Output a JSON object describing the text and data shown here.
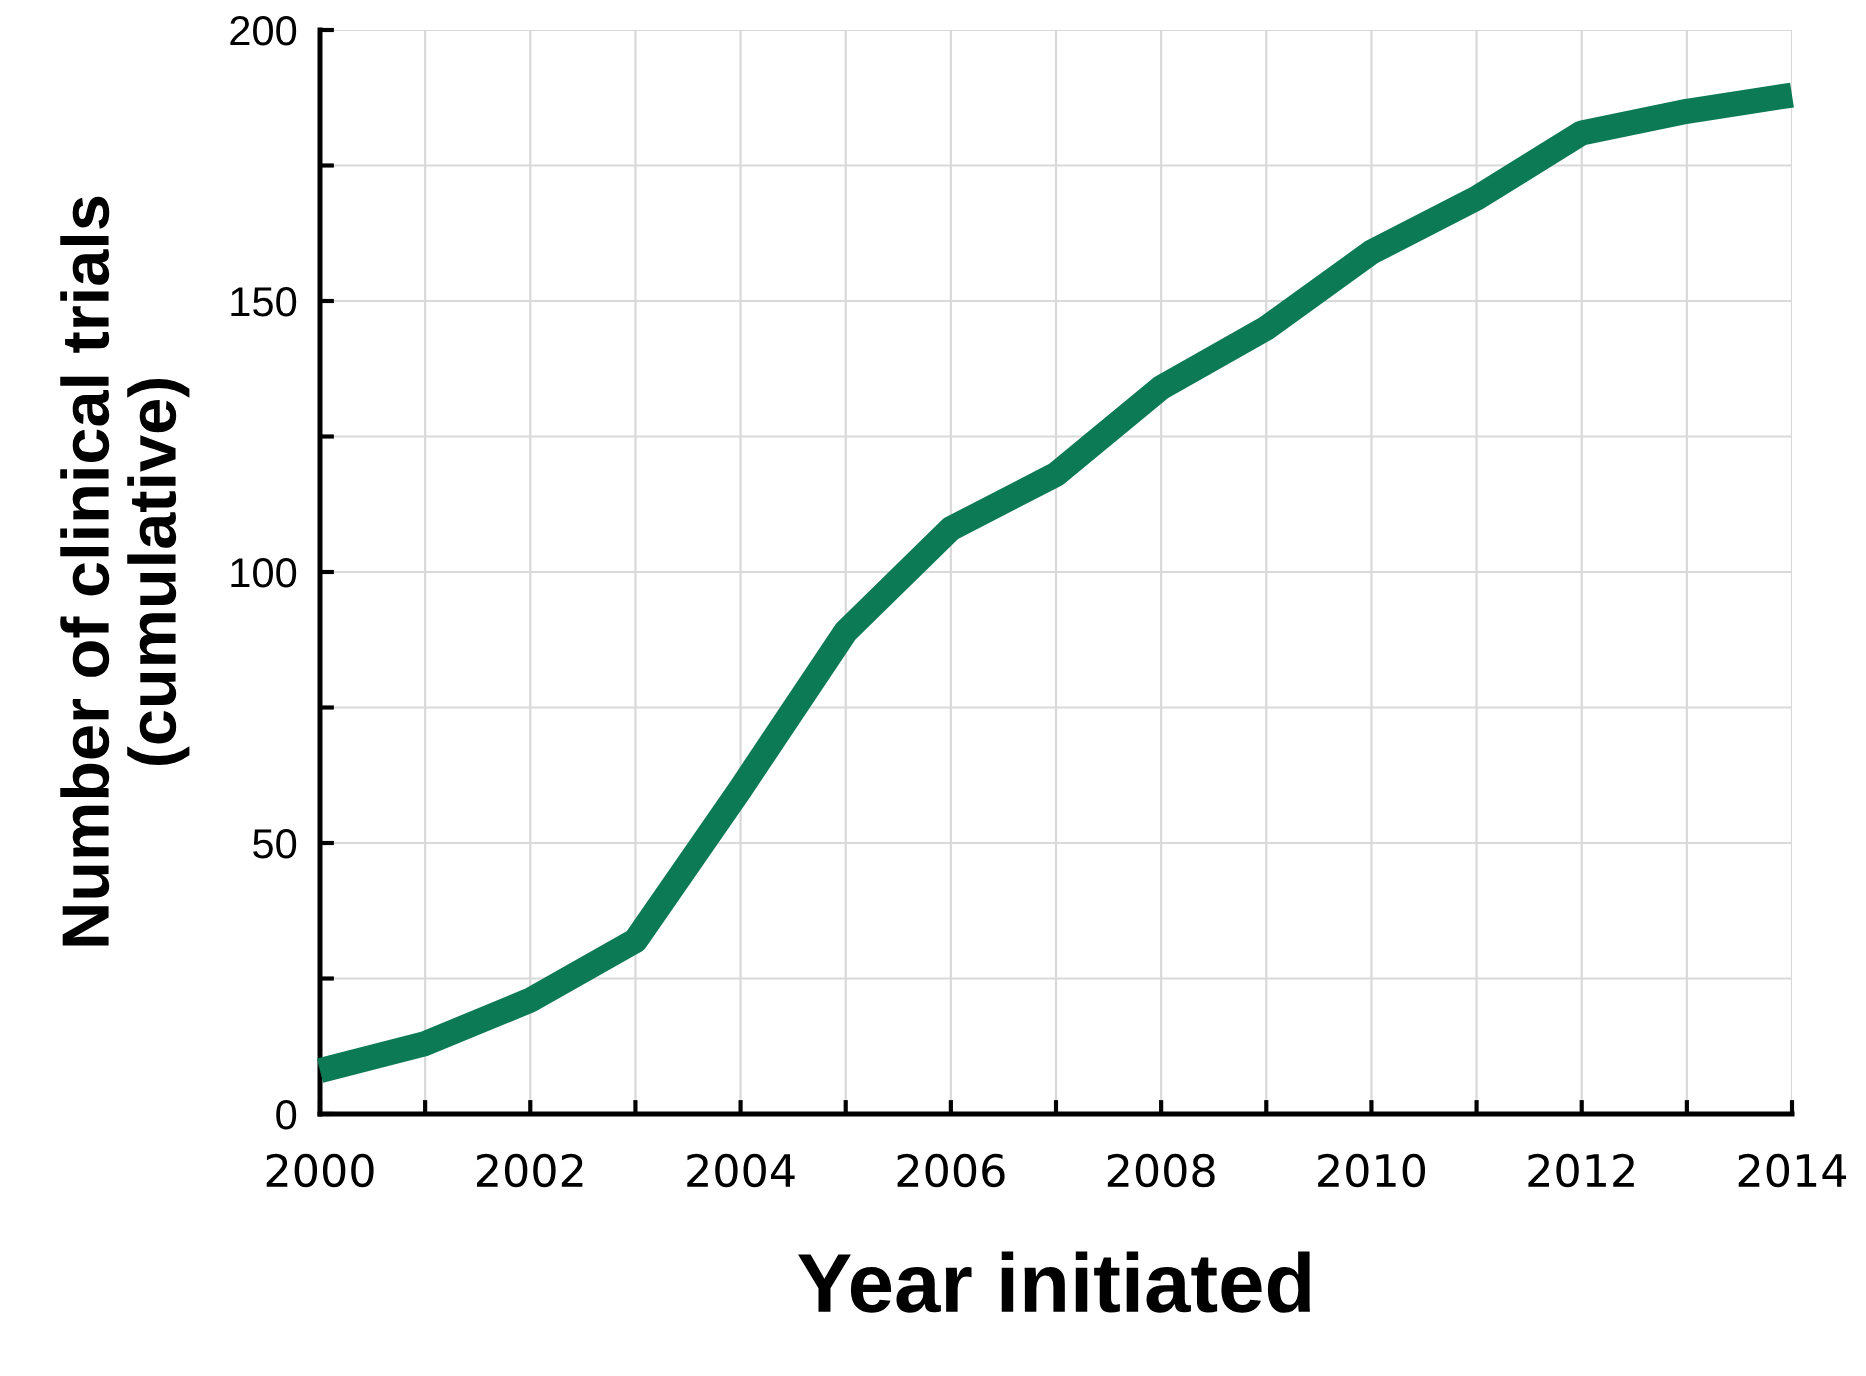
{
  "chart_data": {
    "type": "line",
    "xlabel": "Year initiated",
    "ylabel": "Number of clinical trials\n(cumulative)",
    "x": [
      2000,
      2001,
      2002,
      2003,
      2004,
      2005,
      2006,
      2007,
      2008,
      2009,
      2010,
      2011,
      2012,
      2013,
      2014
    ],
    "series": [
      {
        "color": "#0b7a55",
        "values": [
          8,
          13,
          21,
          32,
          60,
          89,
          108,
          118,
          134,
          145,
          159,
          169,
          181,
          185,
          188
        ]
      }
    ],
    "xlim": [
      2000,
      2014
    ],
    "xticks": [
      2000,
      {
        "value": 2001,
        "label": null
      },
      2002,
      {
        "value": 2003,
        "label": null
      },
      2004,
      {
        "value": 2005,
        "label": null
      },
      2006,
      {
        "value": 2007,
        "label": null
      },
      2008,
      {
        "value": 2009,
        "label": null
      },
      2010,
      {
        "value": 2011,
        "label": null
      },
      2012,
      {
        "value": 2013,
        "label": null
      },
      2014
    ],
    "ylim": [
      0,
      200
    ],
    "yticks": [
      0,
      {
        "value": 25,
        "label": null
      },
      50,
      {
        "value": 75,
        "label": null
      },
      100,
      {
        "value": 125,
        "label": null
      },
      150,
      {
        "value": 175,
        "label": null
      },
      200
    ],
    "grid": true,
    "marker": "none",
    "line_style": "solid"
  }
}
